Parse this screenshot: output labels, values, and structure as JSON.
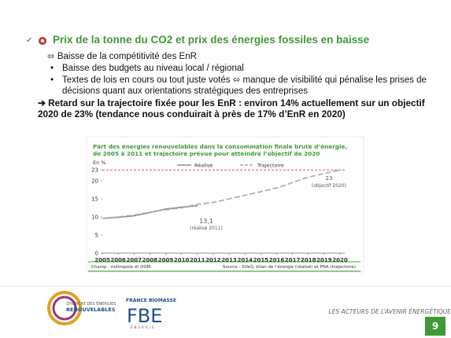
{
  "heading": "Prix de la tonne du CO2 et prix des énergies fossiles en baisse",
  "subheading": "⬄ Baisse de la compétitivité des EnR",
  "bullets": [
    "Baisse des budgets au niveau local / régional",
    "Textes de lois en cours ou tout juste votés ⬄ manque de visibilité qui pénalise les prises de décisions quant aux orientations stratégiques des entreprises"
  ],
  "conclusion": "➔ Retard sur la trajectoire fixée pour les EnR : environ 14% actuellement sur un objectif 2020 de 23% (tendance nous conduirait à près de 17% d’EnR en 2020)",
  "chart_data": {
    "type": "line",
    "title": "Part des énergies renouvelables dans la consommation finale brute d’énergie, de 2005 à 2011 et trajectoire prévue pour atteindre l’objectif de 2020",
    "y_unit": "En %",
    "x": [
      2005,
      2006,
      2007,
      2008,
      2009,
      2010,
      2011,
      2012,
      2013,
      2014,
      2015,
      2016,
      2017,
      2018,
      2019,
      2020
    ],
    "series": [
      {
        "name": "Réalisé",
        "color": "#8c8c8c",
        "dash": false,
        "values": [
          9.6,
          9.9,
          10.3,
          11.2,
          12.2,
          12.7,
          13.1,
          null,
          null,
          null,
          null,
          null,
          null,
          null,
          null,
          null
        ]
      },
      {
        "name": "Trajectoire",
        "color": "#a8a8a8",
        "dash": true,
        "values": [
          9.6,
          10.0,
          10.5,
          11.3,
          12.0,
          12.5,
          13.5,
          14.0,
          15.0,
          16.0,
          17.0,
          18.0,
          19.5,
          21.0,
          22.0,
          23.0
        ]
      }
    ],
    "target": {
      "value": 23,
      "color": "#e05050"
    },
    "annotations": [
      "13,1",
      "(réalisé 2011)",
      "23",
      "(objectif 2020)"
    ],
    "xlim": [
      2005,
      2020
    ],
    "xticks": [
      2005,
      2006,
      2007,
      2008,
      2009,
      2010,
      2011,
      2012,
      2013,
      2014,
      2015,
      2016,
      2017,
      2018,
      2019,
      2020
    ],
    "ylim": [
      0,
      25
    ],
    "yticks": [
      0,
      5,
      10,
      15,
      20,
      23
    ],
    "grid": false,
    "footnote_left": "Champ : métropole et DOM.",
    "footnote_right": "Source : SOeS, bilan de l’énergie (réalisé) et PNA (trajectoire)"
  },
  "footer": {
    "logo1_line1": "SYNDICAT DES ÉNERGIES",
    "logo1_line2": "RENOUVELABLES",
    "logo2_top": "FRANCE BIOMASSE",
    "logo2_mark": "FBE",
    "logo2_sub": "ÉNERGIE",
    "tagline": "LES ACTEURS DE L’AVENIR ÉNERGÉTIQUE",
    "page": "9"
  }
}
